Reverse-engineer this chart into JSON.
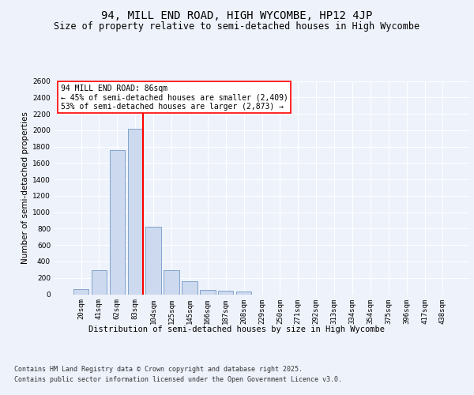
{
  "title": "94, MILL END ROAD, HIGH WYCOMBE, HP12 4JP",
  "subtitle": "Size of property relative to semi-detached houses in High Wycombe",
  "xlabel": "Distribution of semi-detached houses by size in High Wycombe",
  "ylabel": "Number of semi-detached properties",
  "categories": [
    "20sqm",
    "41sqm",
    "62sqm",
    "83sqm",
    "104sqm",
    "125sqm",
    "145sqm",
    "166sqm",
    "187sqm",
    "208sqm",
    "229sqm",
    "250sqm",
    "271sqm",
    "292sqm",
    "313sqm",
    "334sqm",
    "354sqm",
    "375sqm",
    "396sqm",
    "417sqm",
    "438sqm"
  ],
  "values": [
    60,
    295,
    1760,
    2020,
    820,
    290,
    155,
    50,
    45,
    35,
    0,
    0,
    0,
    0,
    0,
    0,
    0,
    0,
    0,
    0,
    0
  ],
  "bar_color": "#ccd9ee",
  "bar_edge_color": "#7399c6",
  "red_line_x": 3.425,
  "annotation_title": "94 MILL END ROAD: 86sqm",
  "annotation_line1": "← 45% of semi-detached houses are smaller (2,409)",
  "annotation_line2": "53% of semi-detached houses are larger (2,873) →",
  "ylim": [
    0,
    2600
  ],
  "yticks": [
    0,
    200,
    400,
    600,
    800,
    1000,
    1200,
    1400,
    1600,
    1800,
    2000,
    2200,
    2400,
    2600
  ],
  "footer_line1": "Contains HM Land Registry data © Crown copyright and database right 2025.",
  "footer_line2": "Contains public sector information licensed under the Open Government Licence v3.0.",
  "bg_color": "#eef2fb",
  "plot_bg_color": "#eef2fb",
  "grid_color": "#ffffff",
  "title_fontsize": 10,
  "subtitle_fontsize": 8.5,
  "axis_label_fontsize": 7.5,
  "tick_fontsize": 6.5,
  "annotation_fontsize": 7,
  "footer_fontsize": 6
}
